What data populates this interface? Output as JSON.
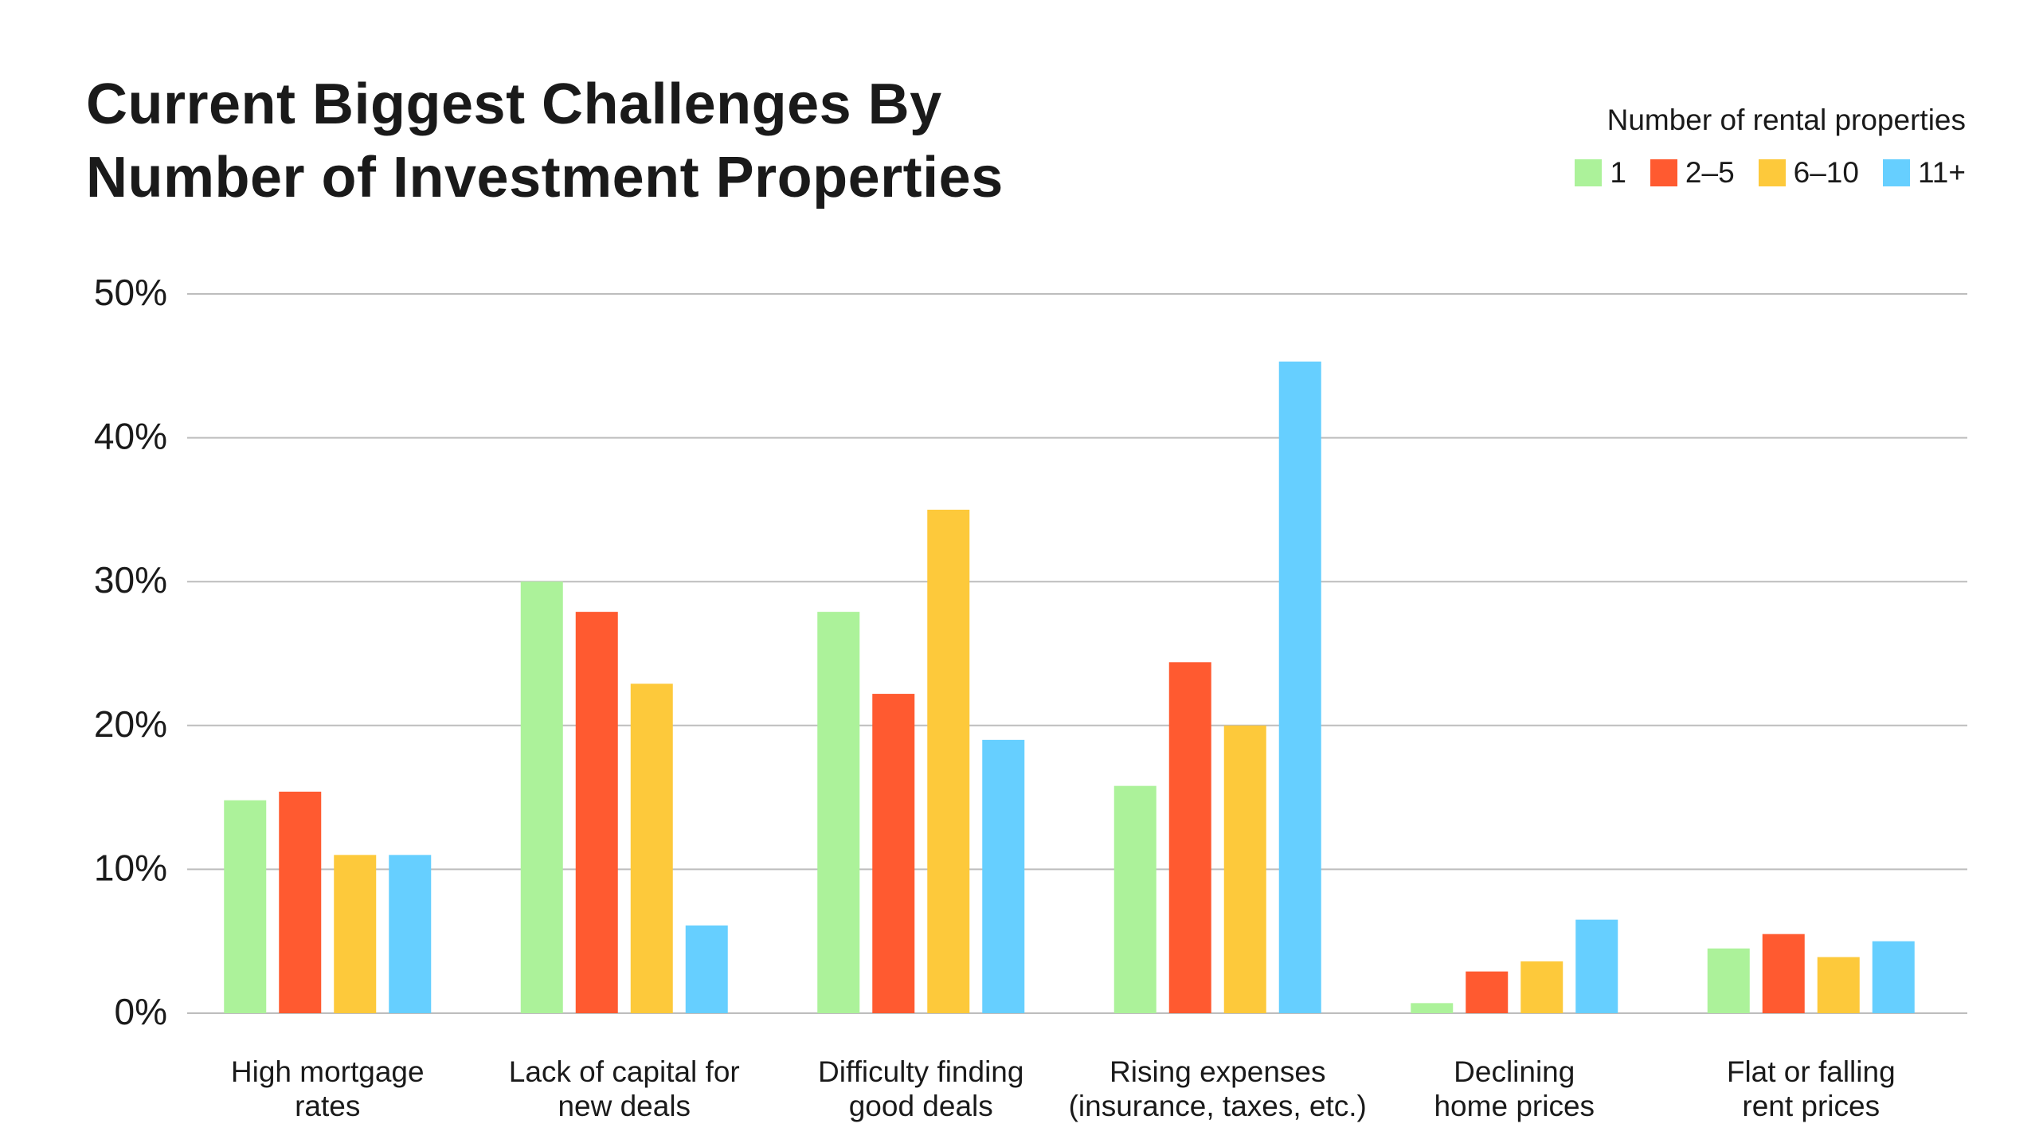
{
  "chart_data": {
    "type": "bar",
    "title": "Current Biggest Challenges By Number of Investment Properties",
    "title_lines": [
      "Current Biggest Challenges By",
      "Number of Investment Properties"
    ],
    "legend_title": "Number of rental properties",
    "legend_position": "top-right",
    "categories": [
      [
        "High mortgage",
        "rates"
      ],
      [
        "Lack of capital for",
        "new deals"
      ],
      [
        "Difficulty finding",
        "good deals"
      ],
      [
        "Rising expenses",
        "(insurance, taxes, etc.)"
      ],
      [
        "Declining",
        "home prices"
      ],
      [
        "Flat or falling",
        "rent prices"
      ]
    ],
    "series": [
      {
        "name": "1",
        "color": "#acf29a",
        "values": [
          14.8,
          30.0,
          27.9,
          15.8,
          0.7,
          4.5
        ]
      },
      {
        "name": "2–5",
        "color": "#ff5a30",
        "values": [
          15.4,
          27.9,
          22.2,
          24.4,
          2.9,
          5.5
        ]
      },
      {
        "name": "6–10",
        "color": "#fdc93b",
        "values": [
          11.0,
          22.9,
          35.0,
          20.0,
          3.6,
          3.9
        ]
      },
      {
        "name": "11+",
        "color": "#66cfff",
        "values": [
          11.0,
          6.1,
          19.0,
          45.3,
          6.5,
          5.0
        ]
      }
    ],
    "ylim": [
      0,
      50
    ],
    "yticks": [
      "0%",
      "10%",
      "20%",
      "30%",
      "40%",
      "50%"
    ],
    "grid": true,
    "xlabel": "",
    "ylabel": ""
  }
}
